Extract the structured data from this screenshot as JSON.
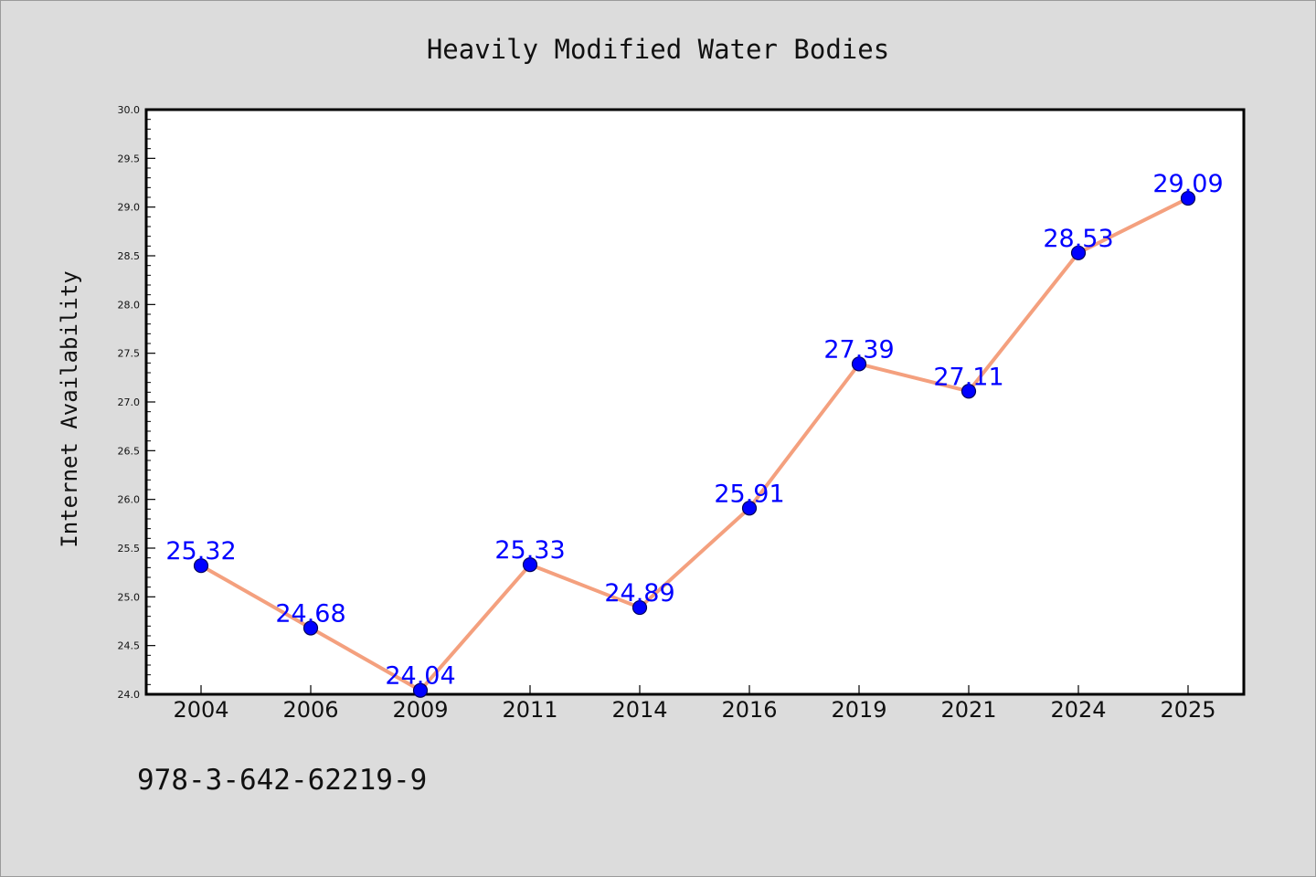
{
  "chart_data": {
    "type": "line",
    "title": "Heavily Modified Water Bodies",
    "xlabel": "",
    "ylabel": "Internet Availability",
    "categories": [
      "2004",
      "2006",
      "2009",
      "2011",
      "2014",
      "2016",
      "2019",
      "2021",
      "2024",
      "2025"
    ],
    "series": [
      {
        "values": [
          25.32,
          24.68,
          24.04,
          25.33,
          24.89,
          25.91,
          27.39,
          27.11,
          28.53,
          29.09
        ],
        "labels": [
          "25.32",
          "24.68",
          "24.04",
          "25.33",
          "24.89",
          "25.91",
          "27.39",
          "27.11",
          "28.53",
          "29.09"
        ]
      }
    ],
    "ylim": [
      24.0,
      30.0
    ],
    "yticks": [
      "24.0",
      "24.5",
      "25.0",
      "25.5",
      "26.0",
      "26.5",
      "27.0",
      "27.5",
      "28.0",
      "28.5",
      "29.0",
      "29.5",
      "30.0"
    ],
    "grid": false,
    "legend": "none",
    "colors": {
      "line": "#f4a07e",
      "marker_fill": "#0000ff",
      "marker_edge": "#00005a",
      "data_label": "#0000ff",
      "background": "#dcdcdc",
      "plot_background": "#ffffff"
    }
  },
  "footer": {
    "isbn": "978-3-642-62219-9"
  }
}
